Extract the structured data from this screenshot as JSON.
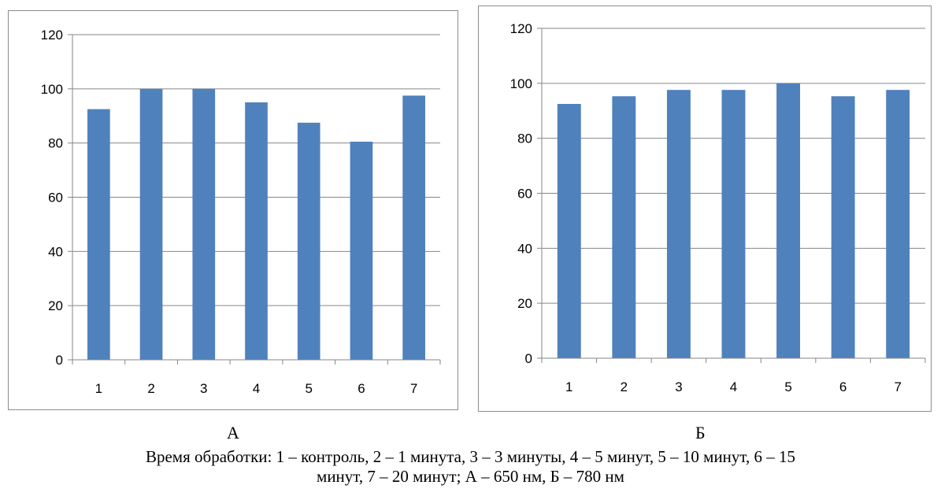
{
  "chart_data": [
    {
      "type": "bar",
      "categories": [
        "1",
        "2",
        "3",
        "4",
        "5",
        "6",
        "7"
      ],
      "values": [
        92.5,
        100,
        100,
        95,
        87.5,
        80.5,
        97.5
      ],
      "ylim": [
        0,
        120
      ],
      "yticks": [
        "0",
        "20",
        "40",
        "60",
        "80",
        "100",
        "120"
      ],
      "grid": true,
      "bar_color": "#4f81bd",
      "grid_color": "#868686",
      "label": "А"
    },
    {
      "type": "bar",
      "categories": [
        "1",
        "2",
        "3",
        "4",
        "5",
        "6",
        "7"
      ],
      "values": [
        92.5,
        95.3,
        97.6,
        97.6,
        100,
        95.3,
        97.6
      ],
      "ylim": [
        0,
        120
      ],
      "yticks": [
        "0",
        "20",
        "40",
        "60",
        "80",
        "100",
        "120"
      ],
      "grid": true,
      "bar_color": "#4f81bd",
      "grid_color": "#868686",
      "label": "Б"
    }
  ],
  "caption": {
    "line1": "Время обработки: 1 – контроль, 2 – 1 минута, 3 – 3 минуты, 4 – 5 минут, 5 – 10 минут, 6 – 15",
    "line2": "минут, 7 – 20 минут; А – 650 нм, Б – 780 нм"
  }
}
